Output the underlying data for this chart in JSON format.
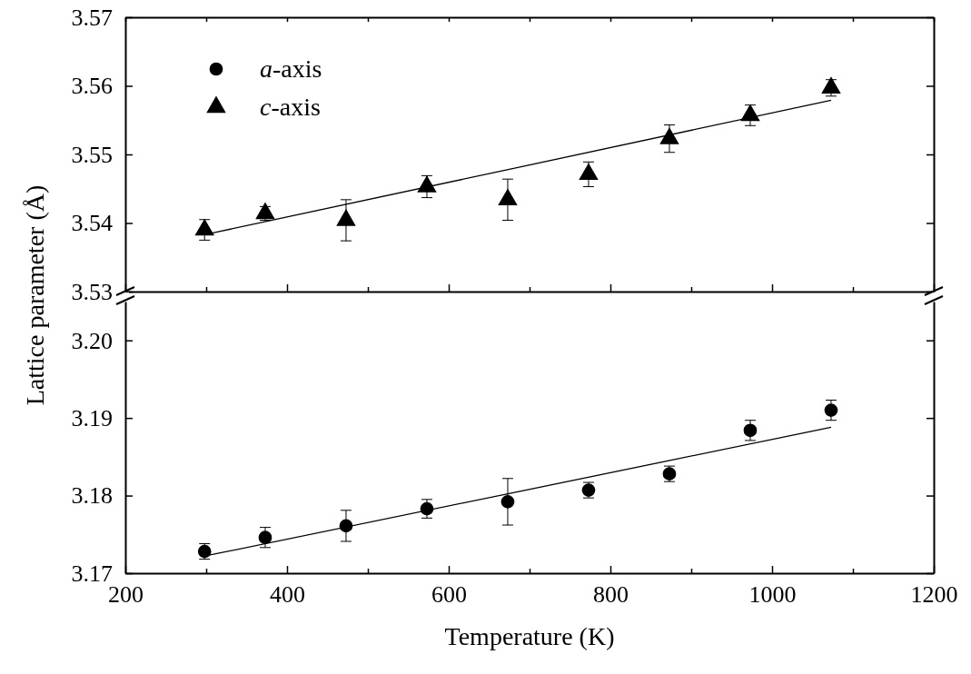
{
  "chart_data": [
    {
      "type": "scatter",
      "ylabel": "Lattice parameter (Å)",
      "xlim": [
        200,
        1200
      ],
      "xticks": [
        200,
        {
          "value": 300,
          "label": null
        },
        400,
        {
          "value": 500,
          "label": null
        },
        600,
        {
          "value": 700,
          "label": null
        },
        800,
        {
          "value": 900,
          "label": null
        },
        1000,
        {
          "value": 1100,
          "label": null
        },
        1200
      ],
      "ylim": [
        3.53,
        3.57
      ],
      "yticks": [
        3.53,
        3.54,
        3.55,
        3.56,
        3.57
      ],
      "tick_labels": "y",
      "legend": "top left",
      "grid": false,
      "x": [
        298,
        373,
        473,
        573,
        673,
        773,
        873,
        973,
        1073
      ],
      "series": [
        {
          "name": "c-axis",
          "color": "#000000",
          "marker": "triangle",
          "values": [
            3.539,
            3.5414,
            3.5404,
            3.5453,
            3.5434,
            3.5471,
            3.5523,
            3.5557,
            3.5597
          ],
          "errors": [
            0.0015,
            0.001,
            0.003,
            0.0016,
            0.003,
            0.0018,
            0.002,
            0.0015,
            0.0012
          ]
        },
        {
          "type": "line",
          "color": "#000000",
          "x": [
            298,
            685.5,
            1073
          ],
          "values": [
            3.5383,
            3.5481,
            3.5579
          ]
        }
      ]
    },
    {
      "type": "scatter",
      "xlabel": "Temperature (K)",
      "xlim": [
        200,
        1200
      ],
      "xticks": [
        200,
        {
          "value": 300,
          "label": null
        },
        400,
        {
          "value": 500,
          "label": null
        },
        600,
        {
          "value": 700,
          "label": null
        },
        800,
        {
          "value": 900,
          "label": null
        },
        1000,
        {
          "value": 1100,
          "label": null
        },
        1200
      ],
      "ylim": [
        3.17,
        3.205
      ],
      "yticks": [
        3.17,
        3.18,
        3.19,
        {
          "value": 3.2,
          "label": "3.20"
        }
      ],
      "grid": false,
      "legend": "top left",
      "x": [
        298,
        373,
        473,
        573,
        673,
        773,
        873,
        973,
        1073
      ],
      "series": [
        {
          "name": "a-axis",
          "color": "#000000",
          "marker": "circle",
          "values": [
            3.1728,
            3.1746,
            3.1761,
            3.1783,
            3.1792,
            3.1807,
            3.1828,
            3.1884,
            3.191
          ],
          "errors": [
            0.001,
            0.0013,
            0.002,
            0.0012,
            0.003,
            0.001,
            0.001,
            0.0013,
            0.0013
          ]
        },
        {
          "type": "line",
          "color": "#000000",
          "x": [
            298,
            685.5,
            1073
          ],
          "values": [
            3.1722,
            3.1805,
            3.1888
          ]
        }
      ]
    }
  ]
}
